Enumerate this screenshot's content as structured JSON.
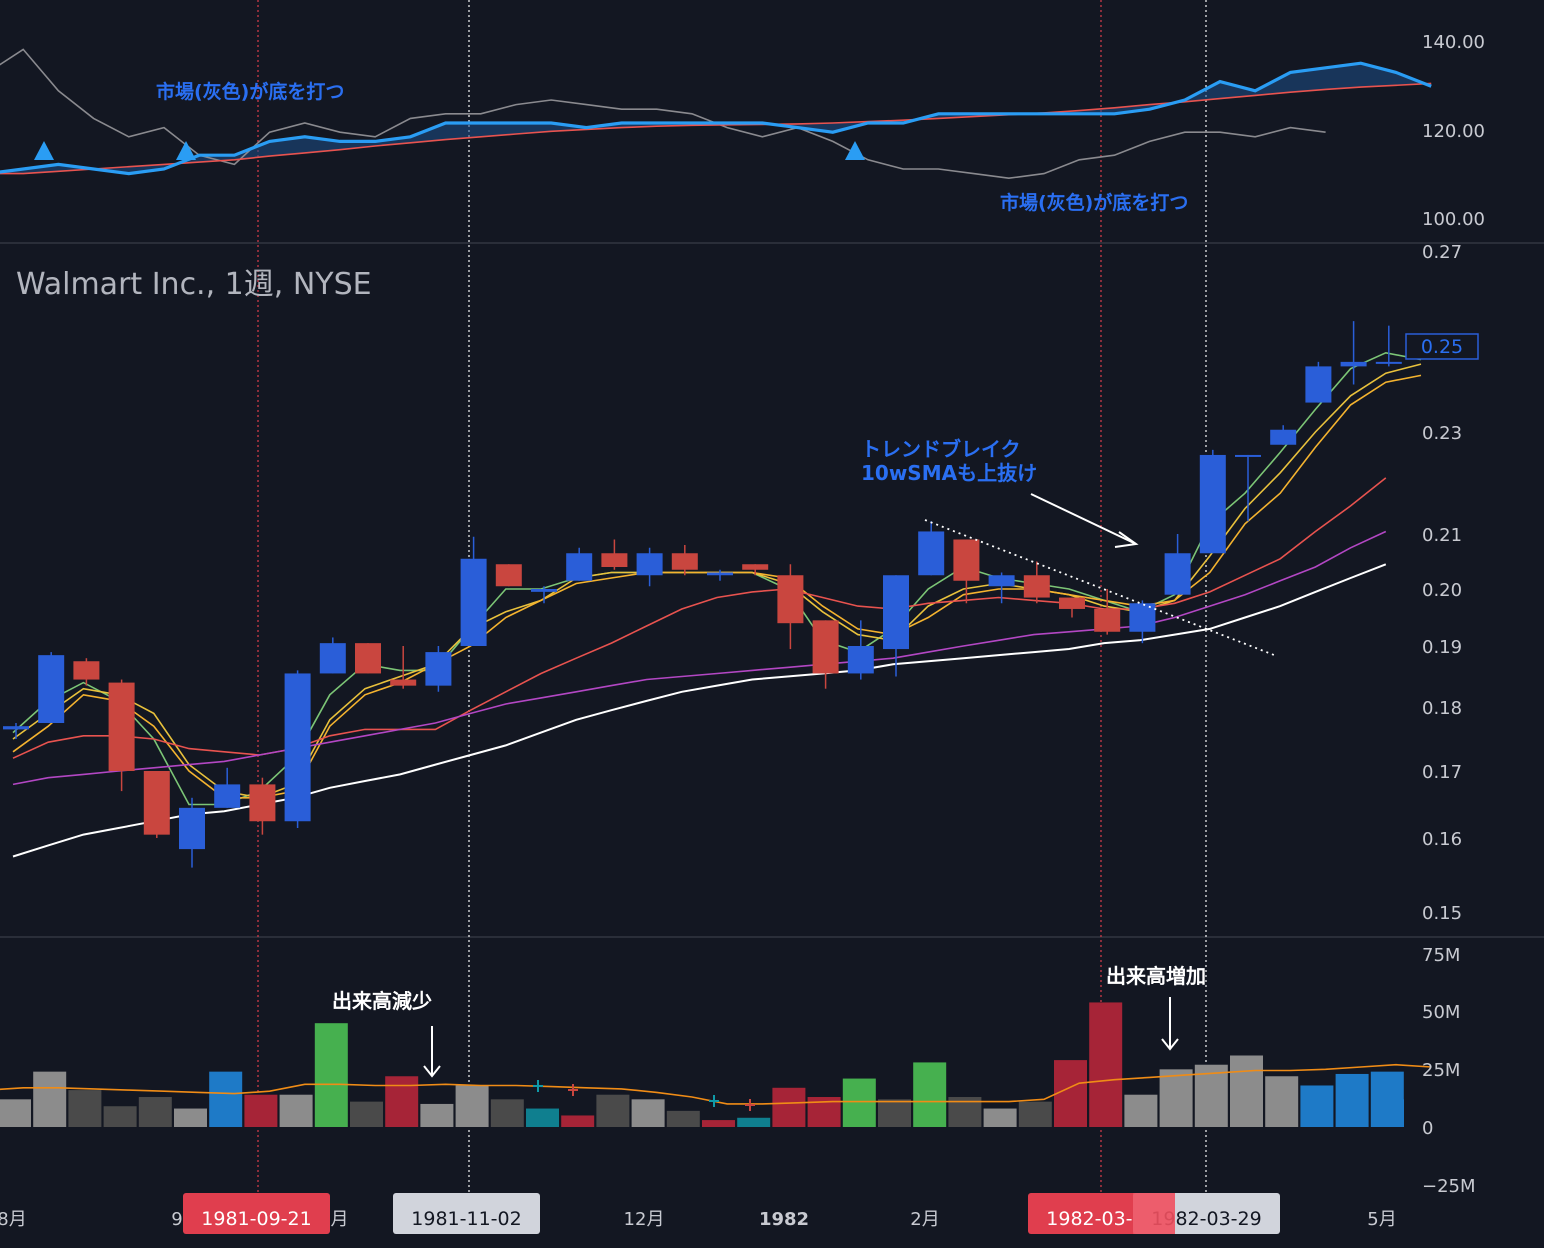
{
  "chart_data": [
    {
      "type": "line",
      "panel": "comparison",
      "ylim": [
        95,
        145
      ],
      "y_ticks": [
        "140.00",
        "120.00",
        "100.00"
      ],
      "series": [
        {
          "values": [
            131,
            136,
            127,
            121,
            117,
            119,
            113,
            111,
            118,
            120,
            118,
            117,
            121,
            122,
            122,
            124,
            125,
            124,
            123,
            123,
            122,
            119,
            117,
            119,
            116,
            112,
            110,
            110,
            109,
            108,
            109,
            112,
            113,
            116,
            118,
            118,
            117,
            119,
            118
          ]
        },
        {
          "values": [
            109,
            110,
            111,
            110,
            109,
            110,
            113,
            113,
            116,
            117,
            116,
            116,
            117,
            120,
            120,
            120,
            120,
            119,
            120,
            120,
            120,
            120,
            120,
            119,
            118,
            120,
            120,
            122,
            122,
            122,
            122,
            122,
            122,
            123,
            125,
            129,
            127,
            131,
            132,
            133,
            131,
            128
          ]
        },
        {
          "values": [
            109,
            109,
            109.5,
            110,
            110.5,
            111,
            111.5,
            112,
            112.8,
            113.5,
            114.2,
            115,
            115.7,
            116.4,
            117,
            117.6,
            118.2,
            118.6,
            119,
            119.3,
            119.5,
            119.6,
            119.7,
            119.8,
            120,
            120.3,
            120.6,
            121,
            121.4,
            121.8,
            122.2,
            122.7,
            123.3,
            124,
            124.6,
            125.3,
            126,
            126.7,
            127.3,
            127.8,
            128.2,
            128.6
          ]
        }
      ],
      "markers_up": [
        {
          "x": 1
        },
        {
          "x": 5
        },
        {
          "x": 24
        }
      ],
      "annotations": [
        "市場(灰色)が底を打つ",
        "市場(灰色)が底を打つ"
      ]
    },
    {
      "type": "candlestick",
      "panel": "price",
      "title": "Walmart Inc., 1週, NYSE",
      "ylim": [
        0.148,
        0.27
      ],
      "y_ticks": [
        "0.27",
        "0.23",
        "0.21",
        "0.20",
        "0.19",
        "0.18",
        "0.17",
        "0.16",
        "0.15"
      ],
      "last_price_label": "0.25",
      "candles": [
        {
          "o": 0.1765,
          "h": 0.1775,
          "l": 0.175,
          "c": 0.177
        },
        {
          "o": 0.1775,
          "h": 0.189,
          "l": 0.1775,
          "c": 0.1885
        },
        {
          "o": 0.1875,
          "h": 0.188,
          "l": 0.1835,
          "c": 0.1845
        },
        {
          "o": 0.184,
          "h": 0.1845,
          "l": 0.167,
          "c": 0.17
        },
        {
          "o": 0.17,
          "h": 0.17,
          "l": 0.16,
          "c": 0.1605
        },
        {
          "o": 0.1585,
          "h": 0.166,
          "l": 0.156,
          "c": 0.1645
        },
        {
          "o": 0.1645,
          "h": 0.1705,
          "l": 0.1645,
          "c": 0.168
        },
        {
          "o": 0.168,
          "h": 0.169,
          "l": 0.1605,
          "c": 0.1625
        },
        {
          "o": 0.1625,
          "h": 0.186,
          "l": 0.1615,
          "c": 0.1855
        },
        {
          "o": 0.1855,
          "h": 0.1915,
          "l": 0.1855,
          "c": 0.1905
        },
        {
          "o": 0.1905,
          "h": 0.1905,
          "l": 0.1855,
          "c": 0.1855
        },
        {
          "o": 0.1845,
          "h": 0.19,
          "l": 0.183,
          "c": 0.1835
        },
        {
          "o": 0.1835,
          "h": 0.19,
          "l": 0.1825,
          "c": 0.189
        },
        {
          "o": 0.19,
          "h": 0.2095,
          "l": 0.19,
          "c": 0.2055
        },
        {
          "o": 0.2045,
          "h": 0.2045,
          "l": 0.2005,
          "c": 0.2005
        },
        {
          "o": 0.1995,
          "h": 0.2005,
          "l": 0.1975,
          "c": 0.2
        },
        {
          "o": 0.2015,
          "h": 0.2075,
          "l": 0.2015,
          "c": 0.2065
        },
        {
          "o": 0.2065,
          "h": 0.209,
          "l": 0.2035,
          "c": 0.204
        },
        {
          "o": 0.2025,
          "h": 0.2075,
          "l": 0.2005,
          "c": 0.2065
        },
        {
          "o": 0.2065,
          "h": 0.208,
          "l": 0.2025,
          "c": 0.2035
        },
        {
          "o": 0.2025,
          "h": 0.2035,
          "l": 0.2015,
          "c": 0.203
        },
        {
          "o": 0.2045,
          "h": 0.2045,
          "l": 0.2025,
          "c": 0.2035
        },
        {
          "o": 0.2025,
          "h": 0.2045,
          "l": 0.1895,
          "c": 0.194
        },
        {
          "o": 0.1945,
          "h": 0.1945,
          "l": 0.183,
          "c": 0.1855
        },
        {
          "o": 0.1855,
          "h": 0.1945,
          "l": 0.1845,
          "c": 0.19
        },
        {
          "o": 0.1895,
          "h": 0.2025,
          "l": 0.185,
          "c": 0.2025
        },
        {
          "o": 0.2025,
          "h": 0.2125,
          "l": 0.2025,
          "c": 0.2105
        },
        {
          "o": 0.209,
          "h": 0.209,
          "l": 0.1975,
          "c": 0.2015
        },
        {
          "o": 0.2005,
          "h": 0.203,
          "l": 0.1975,
          "c": 0.2025
        },
        {
          "o": 0.2025,
          "h": 0.205,
          "l": 0.1975,
          "c": 0.1985
        },
        {
          "o": 0.1985,
          "h": 0.1985,
          "l": 0.195,
          "c": 0.1965
        },
        {
          "o": 0.1965,
          "h": 0.2,
          "l": 0.192,
          "c": 0.1925
        },
        {
          "o": 0.1925,
          "h": 0.198,
          "l": 0.1905,
          "c": 0.1975
        },
        {
          "o": 0.199,
          "h": 0.21,
          "l": 0.199,
          "c": 0.2065
        },
        {
          "o": 0.2065,
          "h": 0.2265,
          "l": 0.2065,
          "c": 0.2255
        },
        {
          "o": 0.2255,
          "h": 0.2255,
          "l": 0.2125,
          "c": 0.2255
        },
        {
          "o": 0.2275,
          "h": 0.2315,
          "l": 0.2275,
          "c": 0.2305
        },
        {
          "o": 0.2365,
          "h": 0.2455,
          "l": 0.2365,
          "c": 0.2445
        },
        {
          "o": 0.2445,
          "h": 0.2545,
          "l": 0.2405,
          "c": 0.2455
        },
        {
          "o": 0.2455,
          "h": 0.2535,
          "l": 0.2445,
          "c": 0.2455
        }
      ],
      "ma_series": [
        {
          "color": "#7cc576",
          "values": [
            0.176,
            0.181,
            0.184,
            0.181,
            0.175,
            0.165,
            0.165,
            0.167,
            0.172,
            0.182,
            0.187,
            0.186,
            0.186,
            0.193,
            0.2,
            0.2,
            0.202,
            0.203,
            0.203,
            0.203,
            0.203,
            0.203,
            0.2,
            0.191,
            0.189,
            0.193,
            0.2,
            0.204,
            0.202,
            0.201,
            0.2,
            0.198,
            0.196,
            0.199,
            0.212,
            0.218,
            0.226,
            0.235,
            0.244,
            0.2475,
            0.246
          ]
        },
        {
          "color": "#e8c13c",
          "values": [
            0.175,
            0.179,
            0.183,
            0.182,
            0.179,
            0.171,
            0.167,
            0.166,
            0.168,
            0.178,
            0.183,
            0.185,
            0.187,
            0.193,
            0.196,
            0.198,
            0.202,
            0.203,
            0.203,
            0.203,
            0.203,
            0.203,
            0.201,
            0.196,
            0.192,
            0.191,
            0.197,
            0.2,
            0.201,
            0.2,
            0.199,
            0.197,
            0.196,
            0.198,
            0.206,
            0.215,
            0.222,
            0.23,
            0.238,
            0.243,
            0.245
          ]
        },
        {
          "color": "#f4b32f",
          "values": [
            0.173,
            0.177,
            0.182,
            0.181,
            0.177,
            0.17,
            0.166,
            0.166,
            0.167,
            0.177,
            0.182,
            0.184,
            0.187,
            0.19,
            0.195,
            0.198,
            0.201,
            0.202,
            0.203,
            0.203,
            0.203,
            0.203,
            0.202,
            0.197,
            0.193,
            0.192,
            0.195,
            0.199,
            0.2,
            0.2,
            0.199,
            0.198,
            0.197,
            0.198,
            0.203,
            0.212,
            0.218,
            0.227,
            0.236,
            0.241,
            0.2425
          ]
        },
        {
          "color": "#e8534f",
          "values": [
            0.172,
            0.1745,
            0.1755,
            0.1755,
            0.175,
            0.1735,
            0.173,
            0.1725,
            0.1735,
            0.1755,
            0.1765,
            0.1765,
            0.1765,
            0.1795,
            0.1825,
            0.1855,
            0.188,
            0.1905,
            0.1935,
            0.1965,
            0.1985,
            0.1995,
            0.2,
            0.1985,
            0.197,
            0.1965,
            0.1975,
            0.198,
            0.1985,
            0.198,
            0.1975,
            0.1965,
            0.1965,
            0.1975,
            0.1995,
            0.2025,
            0.2055,
            0.2105,
            0.2155,
            0.221
          ]
        },
        {
          "color": "#b347c4",
          "values": [
            0.168,
            0.169,
            0.1695,
            0.17,
            0.1705,
            0.171,
            0.1715,
            0.1725,
            0.1735,
            0.1745,
            0.1755,
            0.1765,
            0.1775,
            0.179,
            0.1805,
            0.1815,
            0.1825,
            0.1835,
            0.1845,
            0.185,
            0.1855,
            0.186,
            0.1865,
            0.187,
            0.1875,
            0.188,
            0.189,
            0.19,
            0.191,
            0.192,
            0.1925,
            0.193,
            0.1935,
            0.195,
            0.197,
            0.199,
            0.2015,
            0.204,
            0.2075,
            0.2105
          ]
        },
        {
          "color": "#ffffff",
          "values": [
            0.1575,
            0.159,
            0.1605,
            0.1615,
            0.1625,
            0.1635,
            0.164,
            0.165,
            0.166,
            0.1675,
            0.1685,
            0.1695,
            0.171,
            0.1725,
            0.174,
            0.176,
            0.178,
            0.1795,
            0.181,
            0.1825,
            0.1835,
            0.1845,
            0.185,
            0.1855,
            0.186,
            0.187,
            0.1875,
            0.188,
            0.1885,
            0.189,
            0.1895,
            0.1905,
            0.191,
            0.192,
            0.193,
            0.195,
            0.197,
            0.1995,
            0.202,
            0.2045
          ]
        }
      ],
      "trendline": "dotted",
      "annotations": [
        "トレンドブレイク",
        "10wSMAも上抜け"
      ]
    },
    {
      "type": "bar",
      "panel": "volume",
      "ylim": [
        -28,
        78
      ],
      "y_ticks": [
        "75M",
        "50M",
        "25M",
        "0",
        "−25M"
      ],
      "values": [
        12,
        24,
        16,
        9,
        13,
        8,
        24,
        14,
        14,
        45,
        11,
        22,
        10,
        18,
        12,
        8,
        5,
        14,
        12,
        7,
        3,
        4,
        17,
        13,
        21,
        12,
        28,
        13,
        8,
        11,
        29,
        54,
        14,
        25,
        27,
        31,
        22,
        18,
        23,
        24
      ],
      "colors": [
        "#8c8c8c",
        "#8c8c8c",
        "#4a4a4a",
        "#4a4a4a",
        "#4a4a4a",
        "#8c8c8c",
        "#1e7ac7",
        "#a62437",
        "#8c8c8c",
        "#46b04f",
        "#4a4a4a",
        "#a62437",
        "#8c8c8c",
        "#8c8c8c",
        "#4a4a4a",
        "#0f7f8f",
        "#a62437",
        "#4a4a4a",
        "#8c8c8c",
        "#4a4a4a",
        "#a62437",
        "#0f7f8f",
        "#a62437",
        "#a62437",
        "#46b04f",
        "#4a4a4a",
        "#46b04f",
        "#4a4a4a",
        "#8c8c8c",
        "#4a4a4a",
        "#a62437",
        "#a62437",
        "#8c8c8c",
        "#8c8c8c",
        "#8c8c8c",
        "#8c8c8c",
        "#8c8c8c",
        "#1e7ac7",
        "#1e7ac7",
        "#1e7ac7"
      ],
      "avg_line": [
        16,
        17,
        17,
        16.5,
        16,
        15.5,
        15,
        14.5,
        15.5,
        18.5,
        18.5,
        18,
        18,
        18.5,
        18,
        18,
        17.5,
        17,
        16.5,
        15,
        13,
        10,
        10,
        10.5,
        11,
        11,
        11,
        11,
        11,
        11,
        12,
        19,
        20.5,
        21.5,
        22.5,
        23.5,
        24.5,
        24.5,
        25,
        26,
        27,
        26
      ],
      "annotations": [
        "出来高減少",
        "出来高増加"
      ]
    }
  ],
  "x_labels": [
    "8月",
    "9月",
    "10月",
    "12月",
    "1982",
    "2月",
    "5月"
  ],
  "date_badges": [
    {
      "label": "1981-09-21",
      "color": "#e03e4e"
    },
    {
      "label": "1981-11-02",
      "color": "#d1d4dc"
    },
    {
      "label": "1982-03-08",
      "color": "#e03e4e"
    },
    {
      "label": "1982-03-29",
      "color": "#d1d4dc"
    }
  ],
  "colors": {
    "background": "#131722",
    "bull": "#2a5ed8",
    "bear": "#c9463f",
    "stock_line": "#2a9df4",
    "market_line": "#8a8a8f",
    "rs_ma": "#e8534f",
    "text": "#c8cad1",
    "annotation_blue": "#2a6ff2"
  }
}
